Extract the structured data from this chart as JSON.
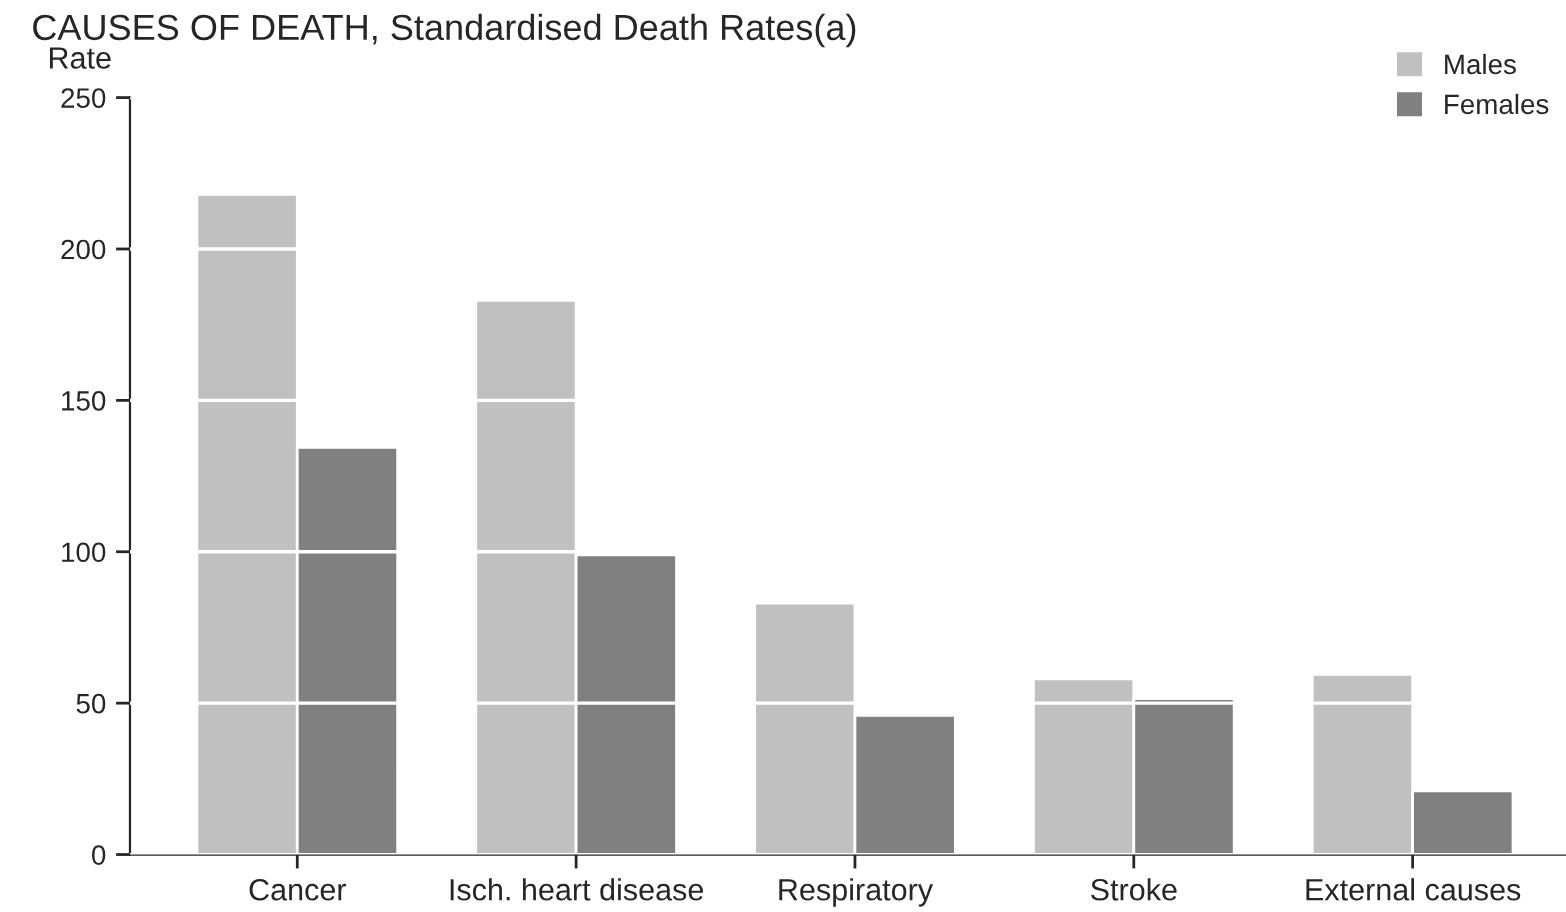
{
  "chart_data": {
    "type": "bar",
    "title": "CAUSES OF DEATH, Standardised Death Rates(a)",
    "ylabel": "Rate",
    "categories": [
      "Cancer",
      "Isch. heart disease",
      "Respiratory",
      "Stroke",
      "External causes"
    ],
    "series": [
      {
        "name": "Males",
        "color": "#c0c0c0",
        "values": [
          218,
          183,
          83,
          58,
          59.5
        ]
      },
      {
        "name": "Females",
        "color": "#808080",
        "values": [
          134.5,
          99,
          46,
          51.5,
          21
        ]
      }
    ],
    "ylim": [
      0,
      250
    ],
    "yticks": [
      0,
      50,
      100,
      150,
      200,
      250
    ],
    "grid": "y",
    "legend": "top right"
  }
}
